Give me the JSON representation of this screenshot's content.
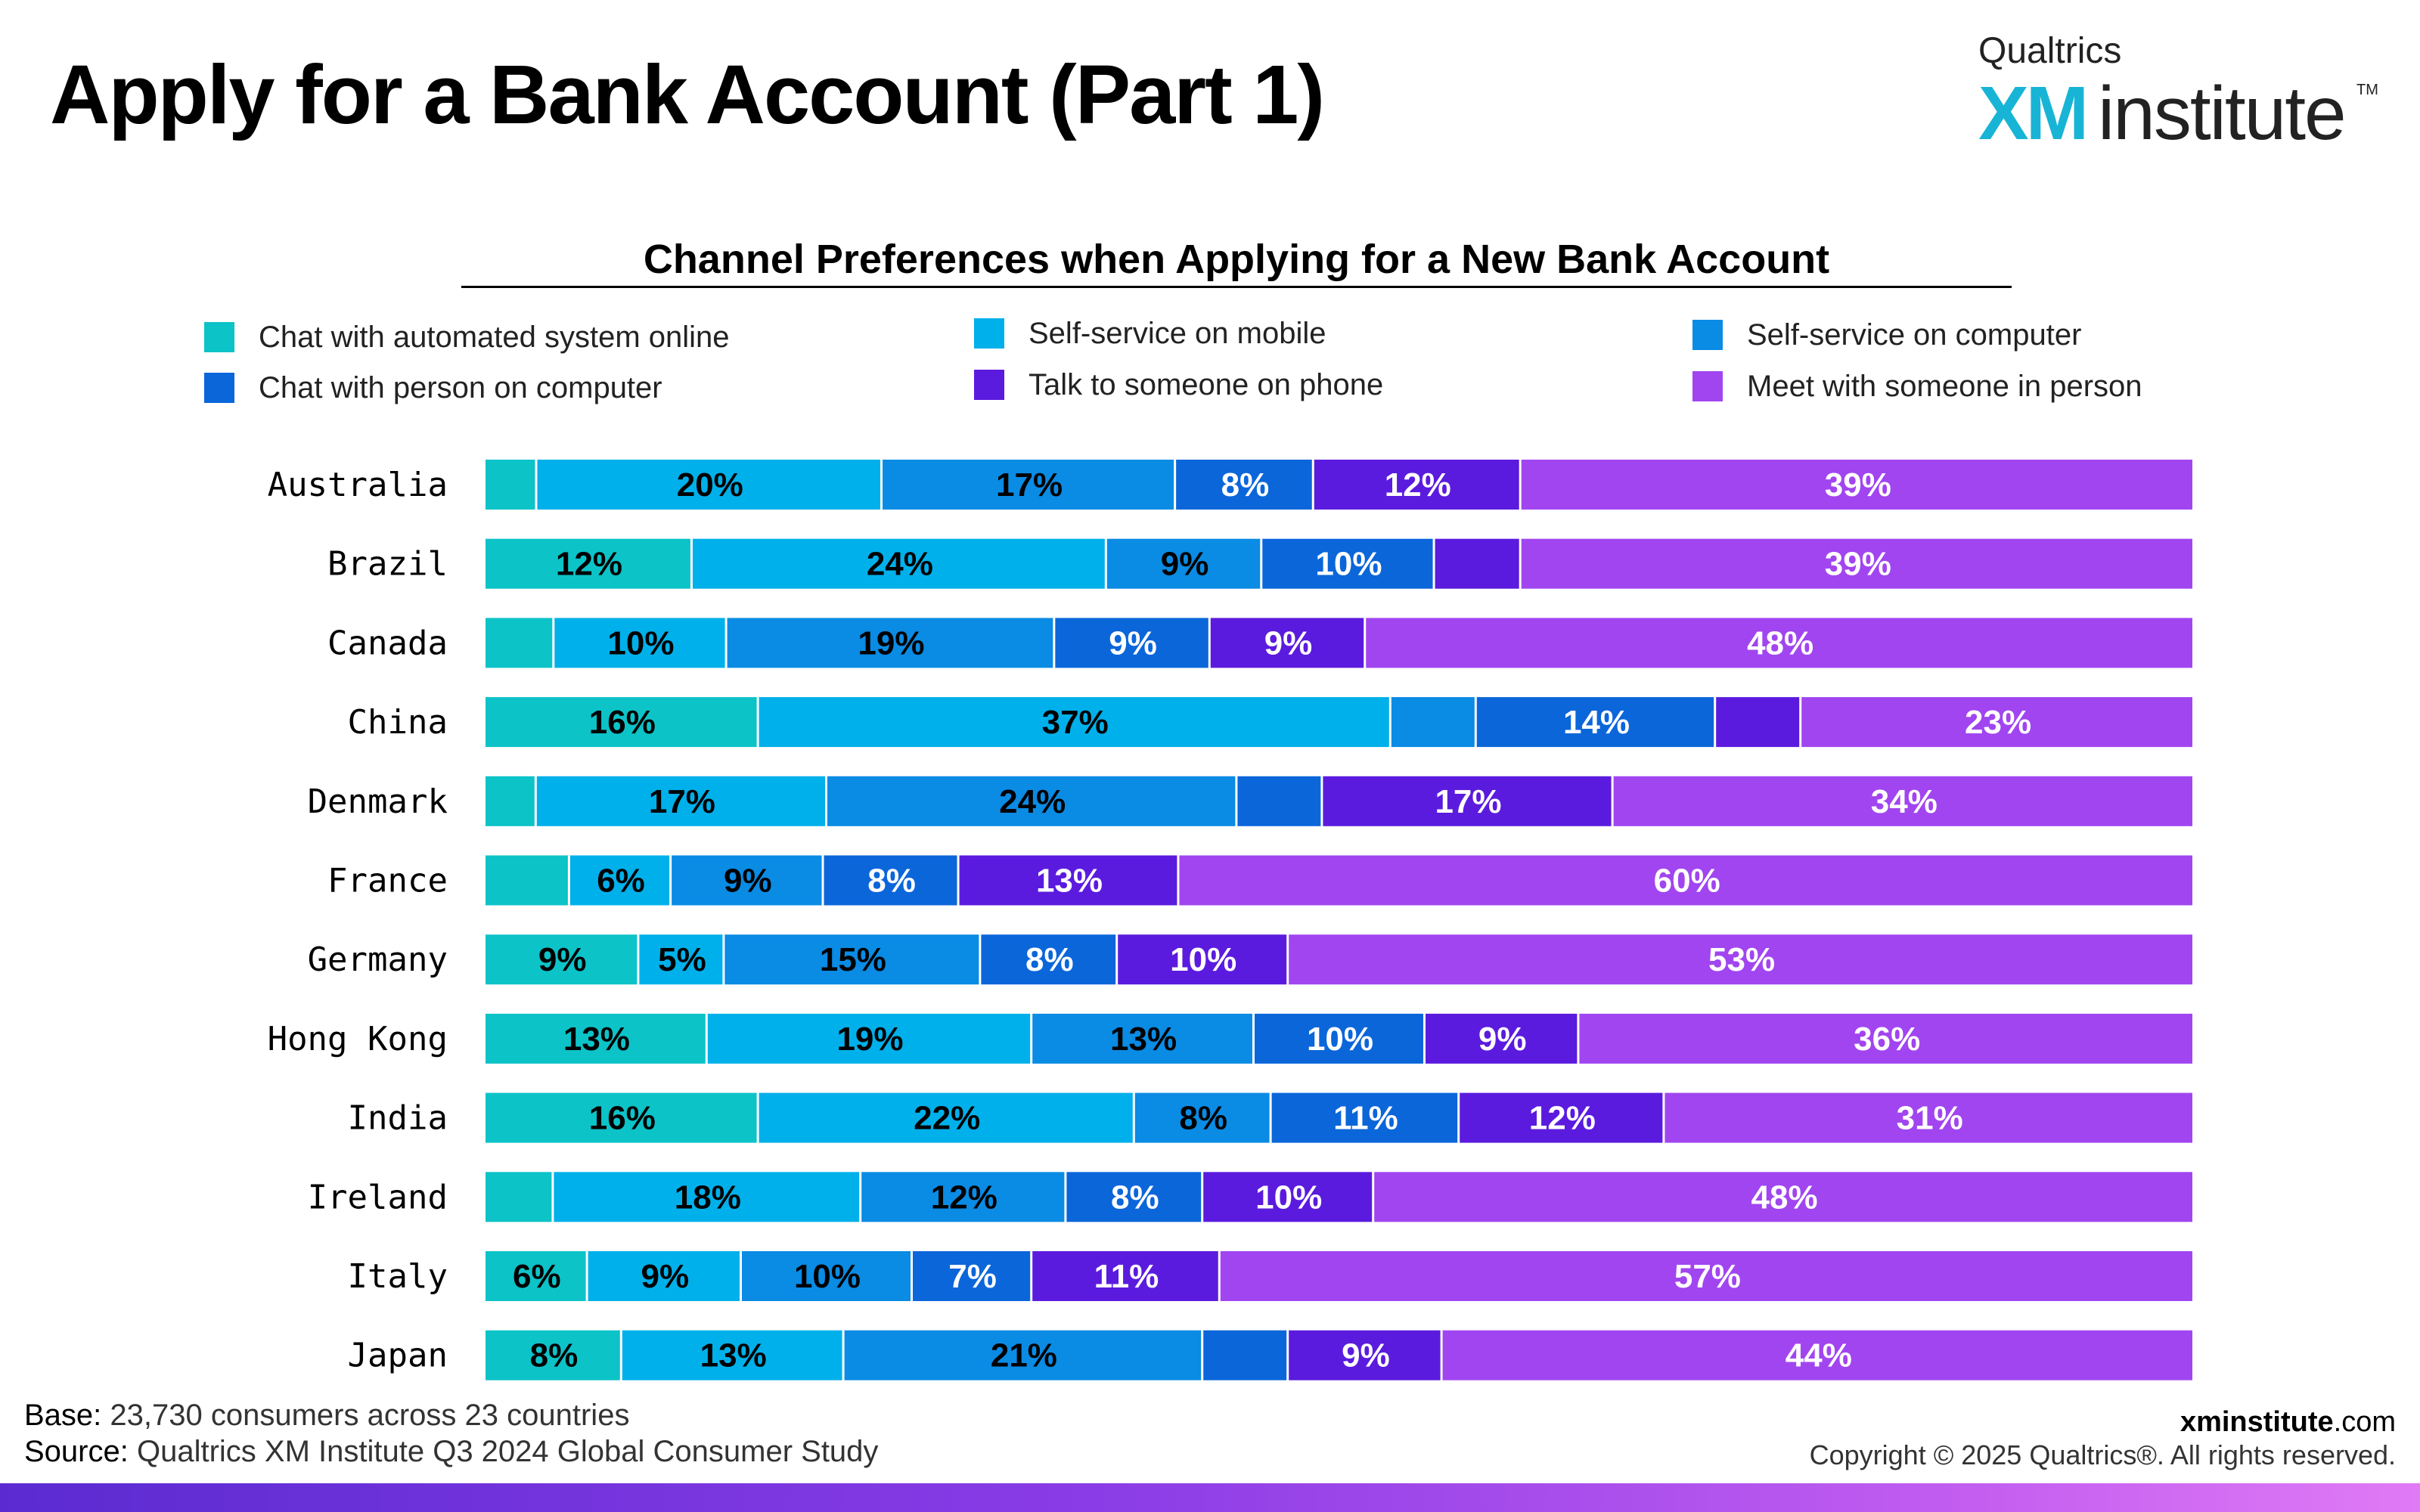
{
  "page": {
    "title": "Apply for a Bank Account (Part 1)",
    "logo": {
      "top": "Qualtrics",
      "xm": "XM",
      "word": "institute",
      "tm": "TM"
    }
  },
  "chart_data": {
    "type": "bar",
    "orientation": "horizontal",
    "stacked": true,
    "title": "Channel Preferences when Applying for a New Bank Account",
    "xlabel": "",
    "ylabel": "",
    "xlim": [
      0,
      100
    ],
    "grid": false,
    "legend_position": "top",
    "categories": [
      "Australia",
      "Brazil",
      "Canada",
      "China",
      "Denmark",
      "France",
      "Germany",
      "Hong Kong",
      "India",
      "Ireland",
      "Italy",
      "Japan"
    ],
    "series": [
      {
        "name": "Chat with automated system online",
        "color": "#0cc3c8",
        "values": [
          3,
          12,
          4,
          16,
          3,
          5,
          9,
          13,
          16,
          4,
          6,
          8
        ],
        "labels": [
          "",
          "12%",
          "",
          "16%",
          "",
          "",
          "9%",
          "13%",
          "16%",
          "",
          "6%",
          "8%"
        ]
      },
      {
        "name": "Self-service on mobile",
        "color": "#00b0ea",
        "values": [
          20,
          24,
          10,
          37,
          17,
          6,
          5,
          19,
          22,
          18,
          9,
          13
        ],
        "labels": [
          "20%",
          "24%",
          "10%",
          "37%",
          "17%",
          "6%",
          "5%",
          "19%",
          "22%",
          "18%",
          "9%",
          "13%"
        ]
      },
      {
        "name": "Self-service on computer",
        "color": "#0a8be4",
        "values": [
          17,
          9,
          19,
          5,
          24,
          9,
          15,
          13,
          8,
          12,
          10,
          21
        ],
        "labels": [
          "17%",
          "9%",
          "19%",
          "",
          "24%",
          "9%",
          "15%",
          "13%",
          "8%",
          "12%",
          "10%",
          "21%"
        ]
      },
      {
        "name": "Chat with person on computer",
        "color": "#0b66da",
        "values": [
          8,
          10,
          9,
          14,
          5,
          8,
          8,
          10,
          11,
          8,
          7,
          5
        ],
        "labels": [
          "8%",
          "10%",
          "9%",
          "14%",
          "",
          "8%",
          "8%",
          "10%",
          "11%",
          "8%",
          "7%",
          ""
        ]
      },
      {
        "name": "Talk to someone on phone",
        "color": "#5b1bde",
        "values": [
          12,
          5,
          9,
          5,
          17,
          13,
          10,
          9,
          12,
          10,
          11,
          9
        ],
        "labels": [
          "12%",
          "",
          "9%",
          "",
          "17%",
          "13%",
          "10%",
          "9%",
          "12%",
          "10%",
          "11%",
          "9%"
        ]
      },
      {
        "name": "Meet with someone in person",
        "color": "#a145f0",
        "values": [
          39,
          39,
          48,
          23,
          34,
          60,
          53,
          36,
          31,
          48,
          57,
          44
        ],
        "labels": [
          "39%",
          "39%",
          "48%",
          "23%",
          "34%",
          "60%",
          "53%",
          "36%",
          "31%",
          "48%",
          "57%",
          "44%"
        ]
      }
    ],
    "label_text_colors": [
      "#000000",
      "#000000",
      "#000000",
      "#ffffff",
      "#ffffff",
      "#ffffff"
    ]
  },
  "footer": {
    "base_key": "Base:",
    "base_text": " 23,730 consumers across 23 countries",
    "source_key": "Source:",
    "source_text": " Qualtrics XM Institute Q3 2024 Global Consumer Study",
    "site_bold": "xminstitute",
    "site_rest": ".com",
    "copyright": "Copyright © 2025 Qualtrics®. All rights reserved."
  }
}
